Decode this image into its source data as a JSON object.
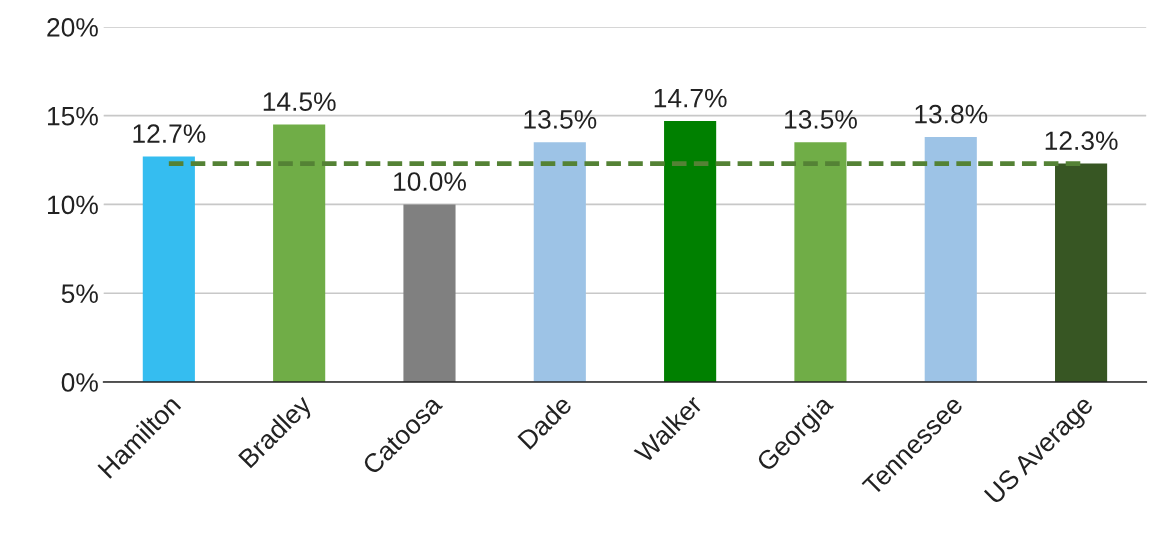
{
  "chart_data": {
    "type": "bar",
    "categories": [
      "Hamilton",
      "Bradley",
      "Catoosa",
      "Dade",
      "Walker",
      "Georgia",
      "Tennessee",
      "US Average"
    ],
    "values": [
      12.7,
      14.5,
      10.0,
      13.5,
      14.7,
      13.5,
      13.8,
      12.3
    ],
    "colors": [
      "#35bdf0",
      "#70ad47",
      "#808080",
      "#9dc3e6",
      "#008000",
      "#70ad47",
      "#9dc3e6",
      "#375623"
    ],
    "value_labels": [
      "12.7%",
      "14.5%",
      "10.0%",
      "13.5%",
      "14.7%",
      "13.5%",
      "13.8%",
      "12.3%"
    ],
    "ylim": [
      0,
      20
    ],
    "yticks": [
      {
        "value": 0,
        "label": "0%"
      },
      {
        "value": 5,
        "label": "5%"
      },
      {
        "value": 10,
        "label": "10%"
      },
      {
        "value": 15,
        "label": "15%"
      },
      {
        "value": 20,
        "label": "20%"
      }
    ],
    "ref_lines": [
      {
        "axis": "y",
        "value": 12.3,
        "color": "#548235",
        "line_style": "dashed"
      }
    ],
    "grid": "y",
    "legend": false
  }
}
